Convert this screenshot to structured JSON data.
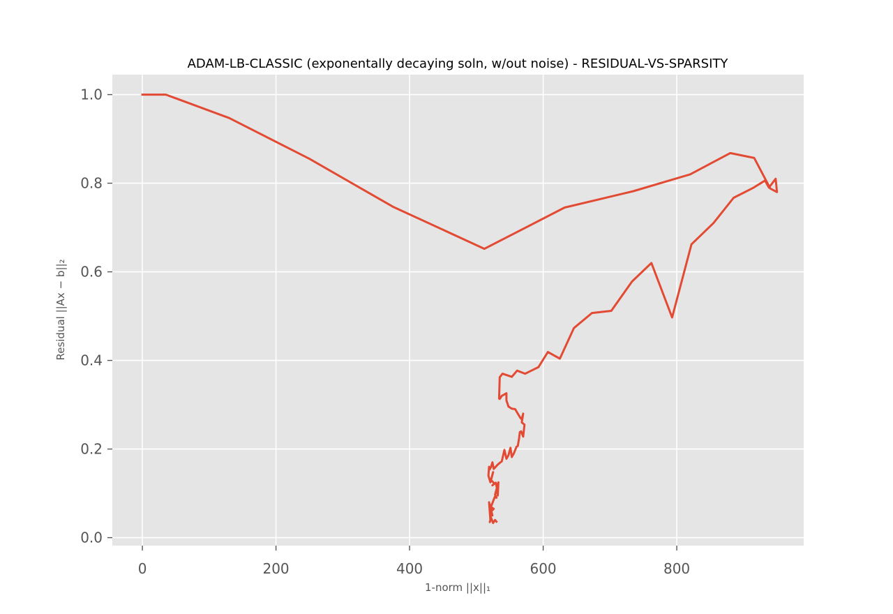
{
  "chart_data": {
    "type": "line",
    "title": "ADAM-LB-CLASSIC (exponentally decaying soln, w/out noise) - RESIDUAL-VS-SPARSITY",
    "xlabel": "1-norm ||x||₁",
    "ylabel": "Residual ||Ax − b||₂",
    "xlim": [
      -45,
      990
    ],
    "ylim": [
      -0.018,
      1.045
    ],
    "xticks": [
      0,
      200,
      400,
      600,
      800
    ],
    "yticks": [
      0.0,
      0.2,
      0.4,
      0.6,
      0.8,
      1.0
    ],
    "xtick_labels": [
      "0",
      "200",
      "400",
      "600",
      "800"
    ],
    "ytick_labels": [
      "0.0",
      "0.2",
      "0.4",
      "0.6",
      "0.8",
      "1.0"
    ],
    "grid": true,
    "colors": {
      "line": "#E24A33",
      "plot_background": "#E5E5E5",
      "grid": "#FFFFFF",
      "tick_label": "#555555"
    },
    "series": [
      {
        "x": [
          0,
          35,
          130,
          250,
          375,
          512,
          632,
          735,
          820,
          880,
          916,
          940,
          950,
          948,
          938,
          932,
          915,
          885,
          855,
          822,
          793,
          762,
          733,
          702,
          673,
          646,
          625,
          607,
          593,
          573,
          561,
          553,
          539,
          535,
          534,
          535,
          538,
          545,
          545,
          548,
          553,
          558,
          562,
          566,
          568,
          570,
          568,
          572,
          570,
          567,
          565,
          564,
          562,
          560,
          556,
          553,
          551,
          548,
          545,
          542,
          540,
          538,
          536,
          532,
          529,
          526,
          524,
          522,
          520,
          519,
          518,
          521,
          525,
          522,
          527,
          524,
          529,
          532,
          530,
          532,
          533,
          528,
          530,
          528,
          526,
          525,
          522,
          524,
          526,
          521,
          524,
          520,
          522,
          519,
          521,
          520,
          522,
          520,
          522,
          525,
          528,
          530
        ],
        "y": [
          1.0,
          1.0,
          0.947,
          0.855,
          0.747,
          0.652,
          0.745,
          0.782,
          0.82,
          0.868,
          0.857,
          0.788,
          0.78,
          0.81,
          0.79,
          0.806,
          0.79,
          0.767,
          0.71,
          0.662,
          0.497,
          0.62,
          0.578,
          0.512,
          0.507,
          0.473,
          0.404,
          0.419,
          0.385,
          0.37,
          0.377,
          0.363,
          0.37,
          0.362,
          0.314,
          0.313,
          0.32,
          0.326,
          0.31,
          0.296,
          0.291,
          0.29,
          0.28,
          0.27,
          0.267,
          0.28,
          0.26,
          0.255,
          0.228,
          0.24,
          0.238,
          0.225,
          0.207,
          0.205,
          0.19,
          0.182,
          0.203,
          0.186,
          0.178,
          0.198,
          0.185,
          0.172,
          0.17,
          0.165,
          0.16,
          0.155,
          0.17,
          0.16,
          0.154,
          0.16,
          0.14,
          0.125,
          0.148,
          0.13,
          0.122,
          0.118,
          0.124,
          0.103,
          0.118,
          0.095,
          0.125,
          0.097,
          0.09,
          0.093,
          0.086,
          0.082,
          0.07,
          0.062,
          0.065,
          0.07,
          0.05,
          0.075,
          0.055,
          0.08,
          0.04,
          0.06,
          0.042,
          0.035,
          0.045,
          0.033,
          0.04,
          0.036
        ]
      }
    ]
  }
}
